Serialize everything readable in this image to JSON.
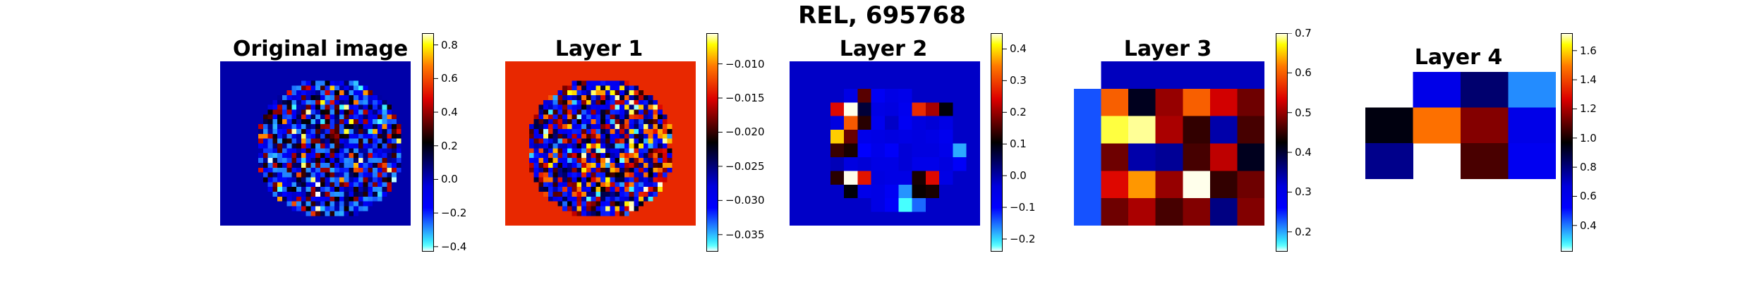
{
  "figure": {
    "title": "REL, 695768"
  },
  "chart_data": [
    {
      "type": "heatmap",
      "title": "Original image",
      "colormap": "hot-cold",
      "vmin": -0.43,
      "vmax": 0.87,
      "colorbar_ticks": [
        {
          "value": -0.4,
          "label": "−0.4"
        },
        {
          "value": -0.2,
          "label": "−0.2"
        },
        {
          "value": 0.0,
          "label": "0.0"
        },
        {
          "value": 0.2,
          "label": "0.2"
        },
        {
          "value": 0.4,
          "label": "0.4"
        },
        {
          "value": 0.6,
          "label": "0.6"
        },
        {
          "value": 0.8,
          "label": "0.8"
        }
      ],
      "grid": {
        "rows": 34,
        "cols": 40
      },
      "background_value": 0.02,
      "mask": "ellipse",
      "mask_ellipse": {
        "center_col": 22.5,
        "center_row": 17.5,
        "radius_cols": 15.5,
        "radius_rows": 14.5
      },
      "sample_seed": 11,
      "sample_range": [
        -0.3,
        0.45
      ]
    },
    {
      "type": "heatmap",
      "title": "Layer 1",
      "colormap": "hot-cold",
      "vmin": -0.0375,
      "vmax": -0.0055,
      "colorbar_ticks": [
        {
          "value": -0.035,
          "label": "−0.035"
        },
        {
          "value": -0.03,
          "label": "−0.030"
        },
        {
          "value": -0.025,
          "label": "−0.025"
        },
        {
          "value": -0.02,
          "label": "−0.020"
        },
        {
          "value": -0.015,
          "label": "−0.015"
        },
        {
          "value": -0.01,
          "label": "−0.010"
        }
      ],
      "grid": {
        "rows": 34,
        "cols": 40
      },
      "background_value": -0.0135,
      "mask": "ellipse",
      "mask_ellipse": {
        "center_col": 19.5,
        "center_row": 17.5,
        "radius_cols": 15.5,
        "radius_rows": 14.5
      },
      "sample_seed": 23,
      "sample_range": [
        -0.032,
        -0.008
      ]
    },
    {
      "type": "heatmap",
      "title": "Layer 2",
      "colormap": "hot-cold",
      "vmin": -0.24,
      "vmax": 0.45,
      "colorbar_ticks": [
        {
          "value": -0.2,
          "label": "−0.2"
        },
        {
          "value": -0.1,
          "label": "−0.1"
        },
        {
          "value": 0.0,
          "label": "0.0"
        },
        {
          "value": 0.1,
          "label": "0.1"
        },
        {
          "value": 0.2,
          "label": "0.2"
        },
        {
          "value": 0.3,
          "label": "0.3"
        },
        {
          "value": 0.4,
          "label": "0.4"
        }
      ],
      "grid": {
        "rows": 12,
        "cols": 14
      },
      "background_value": -0.02,
      "values": [
        [
          -0.02,
          -0.02,
          -0.02,
          -0.02,
          -0.02,
          -0.02,
          -0.02,
          -0.02,
          -0.02,
          -0.02,
          -0.02,
          -0.02,
          -0.02,
          -0.02
        ],
        [
          -0.02,
          -0.02,
          -0.02,
          -0.02,
          -0.02,
          -0.02,
          -0.02,
          -0.02,
          -0.02,
          -0.02,
          -0.02,
          -0.02,
          -0.02,
          -0.02
        ],
        [
          -0.02,
          -0.02,
          -0.02,
          -0.02,
          -0.05,
          0.16,
          -0.08,
          -0.05,
          -0.06,
          -0.02,
          -0.02,
          -0.02,
          -0.02,
          -0.02
        ],
        [
          -0.02,
          -0.02,
          -0.02,
          0.25,
          0.45,
          0.07,
          -0.05,
          -0.04,
          -0.07,
          0.28,
          0.21,
          0.1,
          -0.02,
          -0.02
        ],
        [
          -0.02,
          -0.02,
          -0.02,
          -0.04,
          0.32,
          0.13,
          -0.07,
          -0.02,
          -0.08,
          -0.04,
          -0.03,
          -0.05,
          -0.02,
          -0.02
        ],
        [
          -0.02,
          -0.02,
          -0.02,
          0.39,
          0.17,
          -0.06,
          -0.05,
          -0.04,
          -0.05,
          -0.04,
          -0.05,
          -0.07,
          -0.02,
          -0.02
        ],
        [
          -0.02,
          -0.02,
          -0.02,
          0.14,
          0.12,
          -0.1,
          -0.06,
          -0.09,
          -0.03,
          -0.04,
          -0.04,
          -0.06,
          -0.18,
          -0.02
        ],
        [
          -0.02,
          -0.02,
          -0.02,
          -0.01,
          -0.04,
          -0.03,
          -0.05,
          -0.05,
          -0.03,
          -0.06,
          -0.06,
          -0.04,
          -0.09,
          -0.02
        ],
        [
          -0.02,
          -0.02,
          -0.02,
          0.13,
          0.45,
          0.26,
          -0.04,
          -0.05,
          -0.05,
          0.12,
          0.25,
          -0.05,
          -0.02,
          -0.02
        ],
        [
          -0.02,
          -0.02,
          -0.02,
          -0.02,
          0.1,
          -0.06,
          -0.05,
          -0.08,
          -0.17,
          0.11,
          0.12,
          -0.02,
          -0.02,
          -0.02
        ],
        [
          -0.02,
          -0.02,
          -0.02,
          -0.02,
          -0.02,
          -0.02,
          -0.05,
          -0.09,
          -0.22,
          -0.15,
          -0.02,
          -0.02,
          -0.02,
          -0.02
        ],
        [
          -0.02,
          -0.02,
          -0.02,
          -0.02,
          -0.02,
          -0.02,
          -0.02,
          -0.02,
          -0.02,
          -0.02,
          -0.02,
          -0.02,
          -0.02,
          -0.02
        ]
      ]
    },
    {
      "type": "heatmap",
      "title": "Layer 3",
      "colormap": "hot-cold",
      "vmin": 0.15,
      "vmax": 0.7,
      "colorbar_ticks": [
        {
          "value": 0.2,
          "label": "0.2"
        },
        {
          "value": 0.3,
          "label": "0.3"
        },
        {
          "value": 0.4,
          "label": "0.4"
        },
        {
          "value": 0.5,
          "label": "0.5"
        },
        {
          "value": 0.6,
          "label": "0.6"
        },
        {
          "value": 0.7,
          "label": "0.7"
        }
      ],
      "grid": {
        "rows": 6,
        "cols": 7
      },
      "values": [
        [
          null,
          0.33,
          0.33,
          0.33,
          0.33,
          0.33,
          0.33
        ],
        [
          0.23,
          0.6,
          0.41,
          0.5,
          0.6,
          0.53,
          0.48
        ],
        [
          0.23,
          0.68,
          0.69,
          0.51,
          0.45,
          0.34,
          0.46
        ],
        [
          0.23,
          0.48,
          0.34,
          0.35,
          0.46,
          0.52,
          0.41
        ],
        [
          0.23,
          0.54,
          0.63,
          0.5,
          0.7,
          0.45,
          0.48
        ],
        [
          0.23,
          0.48,
          0.51,
          0.46,
          0.49,
          0.36,
          0.49
        ]
      ]
    },
    {
      "type": "heatmap",
      "title": "Layer 4",
      "colormap": "hot-cold",
      "vmin": 0.22,
      "vmax": 1.72,
      "colorbar_ticks": [
        {
          "value": 0.4,
          "label": "0.4"
        },
        {
          "value": 0.6,
          "label": "0.6"
        },
        {
          "value": 0.8,
          "label": "0.8"
        },
        {
          "value": 1.0,
          "label": "1.0"
        },
        {
          "value": 1.2,
          "label": "1.2"
        },
        {
          "value": 1.4,
          "label": "1.4"
        },
        {
          "value": 1.6,
          "label": "1.6"
        }
      ],
      "grid": {
        "rows": 4,
        "cols": 4
      },
      "values": [
        [
          null,
          0.62,
          0.82,
          0.38
        ],
        [
          0.95,
          1.48,
          1.15,
          0.62
        ],
        [
          0.78,
          null,
          1.07,
          0.58
        ],
        [
          null,
          null,
          null,
          null
        ]
      ]
    }
  ]
}
